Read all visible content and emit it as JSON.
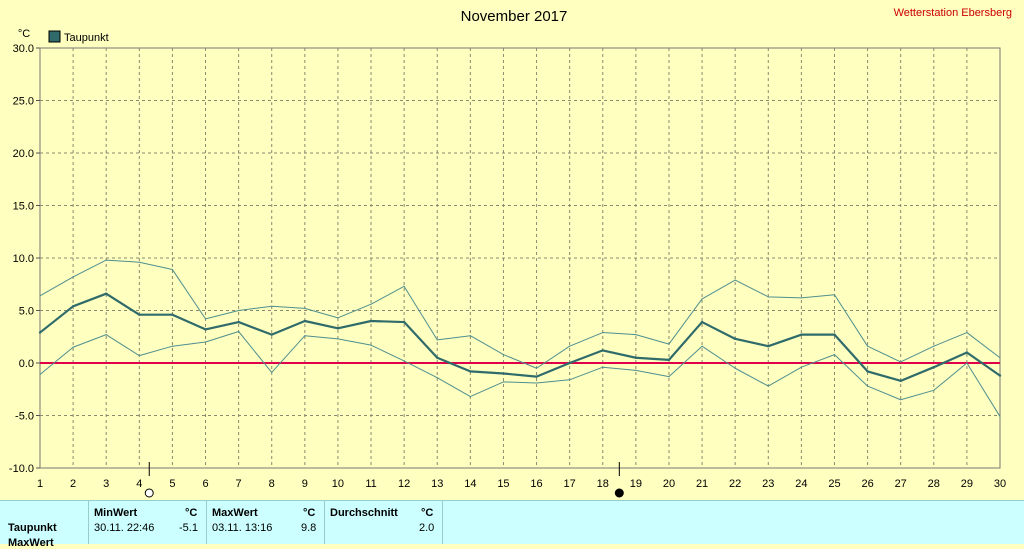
{
  "header": {
    "title": "November 2017",
    "station": "Wetterstation Ebersberg"
  },
  "colors": {
    "background": "#ffffc0",
    "main_line": "#2f6b6b",
    "band_line": "#4f8f8f",
    "zero_line": "#e0004a",
    "grid": "#8a8a70",
    "footer_bg": "#ccffff"
  },
  "chart_data": {
    "type": "line",
    "title": "November 2017",
    "ylabel": "°C",
    "xlabel": "",
    "ylim": [
      -10,
      30
    ],
    "xlim": [
      1,
      30
    ],
    "grid": true,
    "legend_position": "top-left",
    "x": [
      1,
      2,
      3,
      4,
      5,
      6,
      7,
      8,
      9,
      10,
      11,
      12,
      13,
      14,
      15,
      16,
      17,
      18,
      19,
      20,
      21,
      22,
      23,
      24,
      25,
      26,
      27,
      28,
      29,
      30
    ],
    "x_ticks": [
      "1",
      "2",
      "3",
      "4",
      "5",
      "6",
      "7",
      "8",
      "9",
      "10",
      "11",
      "12",
      "13",
      "14",
      "15",
      "16",
      "17",
      "18",
      "19",
      "20",
      "21",
      "22",
      "23",
      "24",
      "25",
      "26",
      "27",
      "28",
      "29",
      "30"
    ],
    "y_ticks": [
      "30.0",
      "25.0",
      "20.0",
      "15.0",
      "10.0",
      "5.0",
      "0.0",
      "-5.0",
      "-10.0"
    ],
    "y_tick_values": [
      30,
      25,
      20,
      15,
      10,
      5,
      0,
      -5,
      -10
    ],
    "series": [
      {
        "name": "Taupunkt",
        "role": "mean",
        "values": [
          2.9,
          5.4,
          6.6,
          4.6,
          4.6,
          3.2,
          3.9,
          2.7,
          4.0,
          3.3,
          4.0,
          3.9,
          0.5,
          -0.8,
          -1.0,
          -1.3,
          0.0,
          1.2,
          0.5,
          0.3,
          3.9,
          2.3,
          1.6,
          2.7,
          2.7,
          -0.8,
          -1.7,
          -0.4,
          1.0,
          -1.2
        ]
      },
      {
        "role": "max",
        "values": [
          6.4,
          8.2,
          9.8,
          9.6,
          8.9,
          4.2,
          5.0,
          5.4,
          5.2,
          4.3,
          5.6,
          7.3,
          2.2,
          2.6,
          0.8,
          -0.5,
          1.6,
          2.9,
          2.7,
          1.8,
          6.1,
          7.9,
          6.3,
          6.2,
          6.5,
          1.6,
          0.1,
          1.6,
          2.9,
          0.5
        ]
      },
      {
        "role": "min",
        "values": [
          -1.1,
          1.5,
          2.7,
          0.7,
          1.6,
          2.0,
          3.0,
          -0.9,
          2.6,
          2.3,
          1.7,
          0.2,
          -1.4,
          -3.2,
          -1.8,
          -1.9,
          -1.6,
          -0.4,
          -0.7,
          -1.3,
          1.6,
          -0.5,
          -2.2,
          -0.4,
          0.8,
          -2.2,
          -3.5,
          -2.6,
          0.0,
          -5.1
        ]
      }
    ],
    "moon_phases": [
      {
        "x": 4.3,
        "phase": "full"
      },
      {
        "x": 18.5,
        "phase": "new"
      }
    ]
  },
  "footer": {
    "row_label": "Taupunkt",
    "row2_label": "MaxWert",
    "min_header": "MinWert",
    "max_header": "MaxWert",
    "avg_header": "Durchschnitt",
    "unit": "°C",
    "min_time": "30.11.  22:46",
    "min_value": "-5.1",
    "max_time": "03.11.  13:16",
    "max_value": "9.8",
    "avg_value": "2.0"
  }
}
